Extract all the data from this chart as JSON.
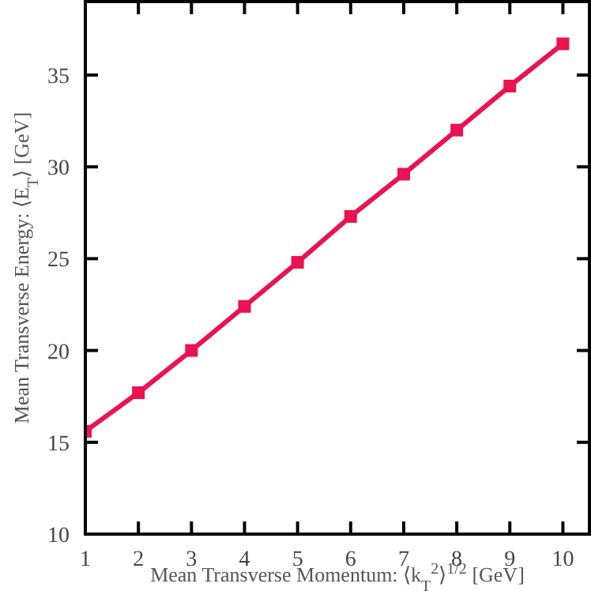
{
  "chart_data": {
    "type": "line",
    "xlabel": "Mean Transverse Momentum: ⟨k$_{T}$$^{2}$⟩$^{1/2}$ [GeV]",
    "ylabel": "Mean Transverse Energy: ⟨E$_{T}$⟩ [GeV]",
    "x": [
      1,
      2,
      3,
      4,
      5,
      6,
      7,
      8,
      9,
      10
    ],
    "series": [
      {
        "color": "#ea1250",
        "values": [
          15.6,
          17.7,
          20.0,
          22.4,
          24.8,
          27.3,
          29.6,
          32.0,
          34.4,
          36.7
        ]
      }
    ],
    "xlim": [
      1,
      10.5
    ],
    "xticks": [
      1,
      2,
      3,
      4,
      5,
      6,
      7,
      8,
      9,
      10
    ],
    "ylim": [
      10,
      39
    ],
    "yticks": [
      10,
      15,
      20,
      25,
      30,
      35
    ],
    "grid": false,
    "legend": false,
    "marker": "square",
    "line_style": "solid"
  }
}
